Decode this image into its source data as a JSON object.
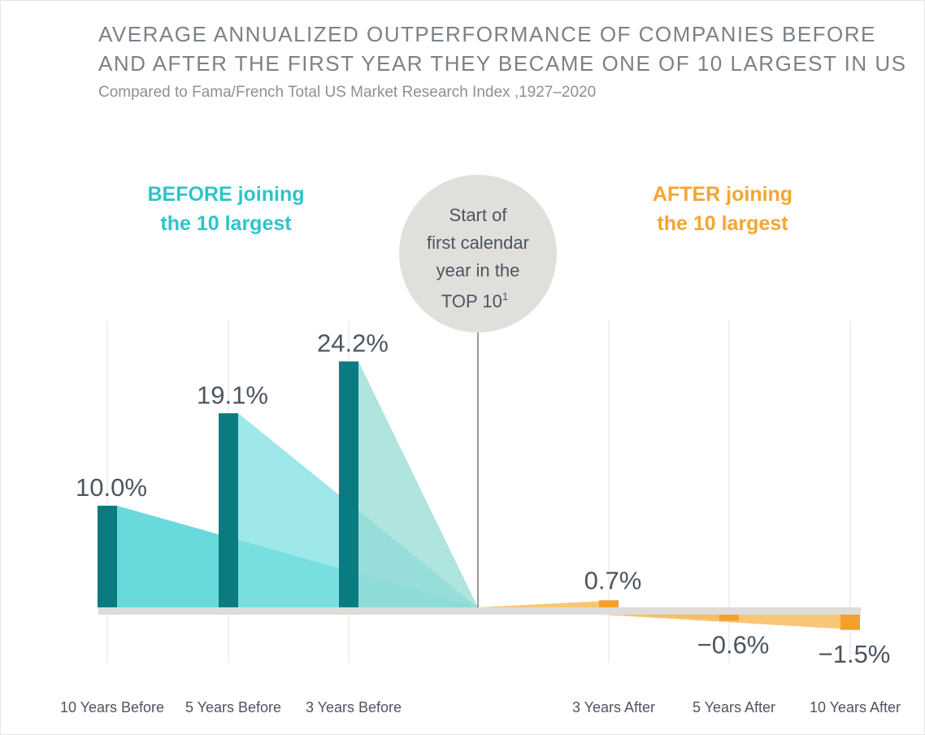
{
  "header": {
    "title_line1": "AVERAGE ANNUALIZED OUTPERFORMANCE OF COMPANIES BEFORE",
    "title_line2": "AND AFTER THE FIRST YEAR THEY BECAME ONE OF 10 LARGEST IN US",
    "subtitle": "Compared to Fama/French Total US Market Research Index ,1927–2020"
  },
  "annotations": {
    "before_line1": "BEFORE joining",
    "before_line2": "the 10 largest",
    "after_line1": "AFTER joining",
    "after_line2": "the 10 largest",
    "center_line1": "Start of",
    "center_line2": "first calendar",
    "center_line3": "year in the",
    "center_line4": "TOP 10",
    "center_sup": "1"
  },
  "colors": {
    "teal_bar": "#0a7b80",
    "teal_text": "#2ec4c8",
    "orange_text": "#f5a531",
    "orange_bar": "#f5a02a",
    "circle": "#e1dfdb",
    "baseline": "#dedcd8",
    "text": "#4d5560"
  },
  "chart_data": {
    "type": "bar",
    "categories": [
      "10 Years Before",
      "5 Years Before",
      "3 Years Before",
      "3 Years After",
      "5 Years After",
      "10 Years After"
    ],
    "values": [
      10.0,
      19.1,
      24.2,
      0.7,
      -0.6,
      -1.5
    ],
    "value_labels": [
      "10.0%",
      "19.1%",
      "24.2%",
      "0.7%",
      "−0.6%",
      "−1.5%"
    ],
    "unit": "%",
    "grid": true,
    "title": "AVERAGE ANNUALIZED OUTPERFORMANCE OF COMPANIES BEFORE AND AFTER THE FIRST YEAR THEY BECAME ONE OF 10 LARGEST IN US",
    "subtitle": "Compared to Fama/French Total US Market Research Index ,1927–2020"
  }
}
